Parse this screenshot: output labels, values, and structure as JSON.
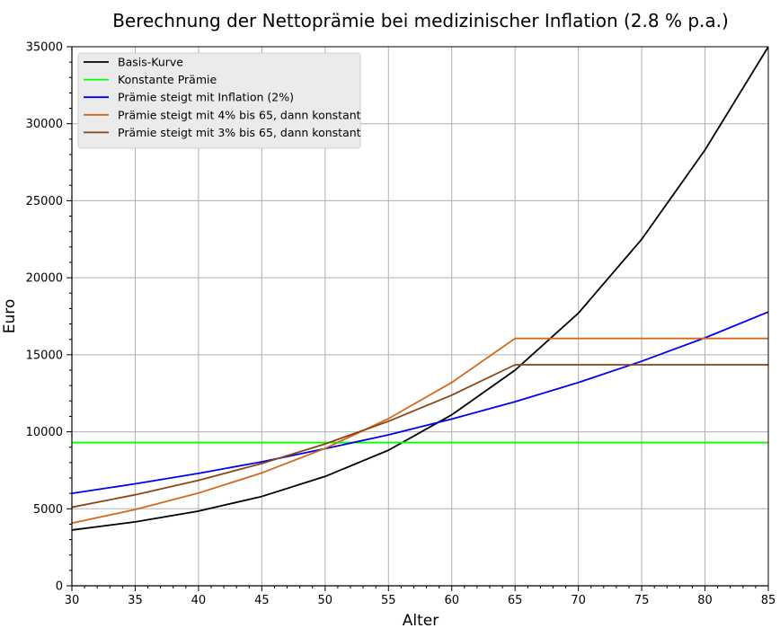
{
  "chart_data": {
    "type": "line",
    "title": "Berechnung der Nettoprämie bei medizinischer Inflation (2.8 % p.a.)",
    "xlabel": "Alter",
    "ylabel": "Euro",
    "xlim": [
      30,
      85
    ],
    "ylim": [
      0,
      35000
    ],
    "xticks": [
      "30",
      "35",
      "40",
      "45",
      "50",
      "55",
      "60",
      "65",
      "70",
      "75",
      "80",
      "85"
    ],
    "yticks": [
      "0",
      "5000",
      "10000",
      "15000",
      "20000",
      "25000",
      "30000",
      "35000"
    ],
    "grid": true,
    "legend_position": "top-left",
    "series": [
      {
        "name": "Basis-Kurve",
        "color": "#000000",
        "x": [
          30,
          35,
          40,
          45,
          50,
          55,
          60,
          65,
          70,
          75,
          80,
          85
        ],
        "y": [
          3620,
          4150,
          4850,
          5800,
          7100,
          8800,
          11100,
          14000,
          17700,
          22500,
          28300,
          35000
        ]
      },
      {
        "name": "Konstante Prämie",
        "color": "#00ff00",
        "x": [
          30,
          85
        ],
        "y": [
          9300,
          9300
        ]
      },
      {
        "name": "Prämie steigt mit Inflation (2%)",
        "color": "#0000ee",
        "x": [
          30,
          35,
          40,
          45,
          50,
          55,
          60,
          65,
          70,
          75,
          80,
          85
        ],
        "y": [
          6000,
          6620,
          7300,
          8050,
          8900,
          9800,
          10830,
          11950,
          13200,
          14580,
          16100,
          17780
        ]
      },
      {
        "name": "Prämie steigt mit 4% bis 65, dann konstant",
        "color": "#d2691e",
        "x": [
          30,
          35,
          40,
          45,
          50,
          55,
          60,
          65,
          70,
          75,
          80,
          85
        ],
        "y": [
          4070,
          4950,
          6020,
          7330,
          8920,
          10850,
          13200,
          16060,
          16060,
          16060,
          16060,
          16060
        ]
      },
      {
        "name": "Prämie steigt mit 3% bis 65, dann konstant",
        "color": "#8b4513",
        "x": [
          30,
          35,
          40,
          45,
          50,
          55,
          60,
          65,
          70,
          75,
          80,
          85
        ],
        "y": [
          5100,
          5910,
          6850,
          7940,
          9210,
          10680,
          12380,
          14350,
          14350,
          14350,
          14350,
          14350
        ]
      }
    ]
  }
}
